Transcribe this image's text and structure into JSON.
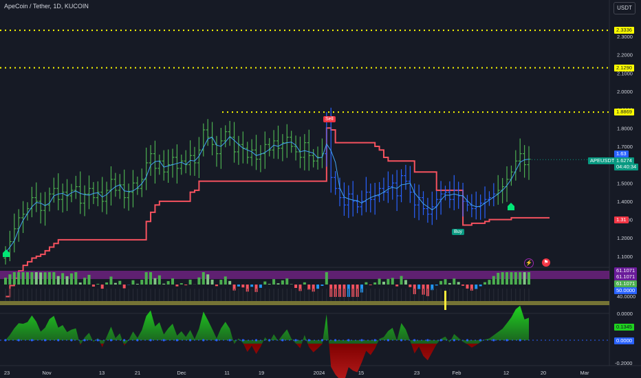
{
  "header": {
    "title": "ApeCoin / Tether, 1D, KUCOIN",
    "currency_button": "USDT"
  },
  "price_axis": {
    "ticks": [
      "2.3000",
      "2.2000",
      "2.1000",
      "2.0000",
      "1.9000",
      "1.8000",
      "1.7000",
      "1.6000",
      "1.5000",
      "1.4000",
      "1.3000",
      "1.2000",
      "1.1000"
    ],
    "level_labels": [
      "2.3336",
      "2.1290",
      "1.8869"
    ],
    "tags": {
      "high": "1.63",
      "symbol": "APEUSDT",
      "price": "1.6274",
      "countdown": "04:40:34",
      "trail": "1.31"
    }
  },
  "signals": {
    "sell": "Sell",
    "buy": "Buy"
  },
  "osc_axis": {
    "ticks": [
      "40.0000",
      "0.0000"
    ],
    "tags": [
      "61.1071",
      "61.1071",
      "61.1071",
      "50.0000"
    ]
  },
  "momentum_axis": {
    "ticks": [
      "-0.2000"
    ],
    "tags": [
      "0.1345",
      "0.0000"
    ]
  },
  "time_axis": [
    "23",
    "Nov",
    "13",
    "21",
    "Dec",
    "11",
    "19",
    "2024",
    "15",
    "23",
    "Feb",
    "12",
    "20",
    "Mar"
  ],
  "colors": {
    "background": "#161a25",
    "up": "#4caf50",
    "down": "#2962ff",
    "trail": "#f7525f",
    "levels": "#ffff00",
    "ma_line": "#42a5f5",
    "osc_band": "#9c27b0",
    "mom_up": "#1fd31f",
    "mom_down": "#b71c1c"
  },
  "chart_data": {
    "type": "candlestick",
    "x": [
      "2023-10-20",
      "2023-10-21",
      "2023-10-22",
      "2023-10-23",
      "2023-10-24",
      "2023-10-25",
      "2023-10-26",
      "2023-10-27",
      "2023-10-28",
      "2023-10-29",
      "2023-10-30",
      "2023-10-31",
      "2023-11-01",
      "2023-11-02",
      "2023-11-03",
      "2023-11-04",
      "2023-11-05",
      "2023-11-06",
      "2023-11-07",
      "2023-11-08",
      "2023-11-09",
      "2023-11-10",
      "2023-11-11",
      "2023-11-12",
      "2023-11-13",
      "2023-11-14",
      "2023-11-15",
      "2023-11-16",
      "2023-11-17",
      "2023-11-18",
      "2023-11-19",
      "2023-11-20",
      "2023-11-21",
      "2023-11-22",
      "2023-11-23",
      "2023-11-24",
      "2023-11-25",
      "2023-11-26",
      "2023-11-27",
      "2023-11-28",
      "2023-11-29",
      "2023-11-30",
      "2023-12-01",
      "2023-12-02",
      "2023-12-03",
      "2023-12-04",
      "2023-12-05",
      "2023-12-06",
      "2023-12-07",
      "2023-12-08",
      "2023-12-09",
      "2023-12-10",
      "2023-12-11",
      "2023-12-12",
      "2023-12-13",
      "2023-12-14",
      "2023-12-15",
      "2023-12-16",
      "2023-12-17",
      "2023-12-18",
      "2023-12-19",
      "2023-12-20",
      "2023-12-21",
      "2023-12-22",
      "2023-12-23",
      "2023-12-24",
      "2023-12-25",
      "2023-12-26",
      "2023-12-27",
      "2023-12-28",
      "2023-12-29",
      "2023-12-30",
      "2023-12-31",
      "2024-01-01",
      "2024-01-02",
      "2024-01-03",
      "2024-01-04",
      "2024-01-05",
      "2024-01-06",
      "2024-01-07",
      "2024-01-08",
      "2024-01-09",
      "2024-01-10",
      "2024-01-11",
      "2024-01-12",
      "2024-01-13",
      "2024-01-14",
      "2024-01-15",
      "2024-01-16",
      "2024-01-17",
      "2024-01-18",
      "2024-01-19",
      "2024-01-20",
      "2024-01-21",
      "2024-01-22",
      "2024-01-23",
      "2024-01-24",
      "2024-01-25",
      "2024-01-26",
      "2024-01-27",
      "2024-01-28",
      "2024-01-29",
      "2024-01-30",
      "2024-01-31",
      "2024-02-01",
      "2024-02-02",
      "2024-02-03",
      "2024-02-04",
      "2024-02-05",
      "2024-02-06",
      "2024-02-07",
      "2024-02-08",
      "2024-02-09",
      "2024-02-10",
      "2024-02-11",
      "2024-02-12",
      "2024-02-13",
      "2024-02-14",
      "2024-02-15",
      "2024-02-16"
    ],
    "close": [
      1.12,
      1.18,
      1.25,
      1.31,
      1.33,
      1.36,
      1.42,
      1.4,
      1.35,
      1.38,
      1.44,
      1.47,
      1.41,
      1.45,
      1.43,
      1.46,
      1.48,
      1.39,
      1.44,
      1.47,
      1.42,
      1.45,
      1.4,
      1.46,
      1.52,
      1.46,
      1.49,
      1.42,
      1.45,
      1.5,
      1.47,
      1.52,
      1.61,
      1.66,
      1.58,
      1.62,
      1.56,
      1.6,
      1.64,
      1.58,
      1.62,
      1.6,
      1.65,
      1.61,
      1.68,
      1.79,
      1.75,
      1.71,
      1.66,
      1.73,
      1.78,
      1.75,
      1.67,
      1.71,
      1.69,
      1.64,
      1.68,
      1.63,
      1.66,
      1.71,
      1.68,
      1.73,
      1.69,
      1.72,
      1.75,
      1.7,
      1.67,
      1.64,
      1.72,
      1.65,
      1.62,
      1.64,
      1.66,
      1.84,
      1.53,
      1.47,
      1.42,
      1.38,
      1.44,
      1.4,
      1.37,
      1.4,
      1.45,
      1.41,
      1.43,
      1.47,
      1.45,
      1.48,
      1.5,
      1.43,
      1.54,
      1.51,
      1.45,
      1.38,
      1.42,
      1.36,
      1.33,
      1.37,
      1.41,
      1.44,
      1.45,
      1.41,
      1.46,
      1.43,
      1.4,
      1.38,
      1.36,
      1.37,
      1.39,
      1.41,
      1.42,
      1.44,
      1.46,
      1.48,
      1.52,
      1.56,
      1.62,
      1.66,
      1.6,
      1.63
    ],
    "trailing_stop": [
      0.88,
      0.94,
      0.98,
      1.02,
      1.05,
      1.07,
      1.09,
      1.1,
      1.11,
      1.13,
      1.15,
      1.17,
      1.19,
      1.19,
      1.19,
      1.19,
      1.19,
      1.19,
      1.19,
      1.19,
      1.19,
      1.19,
      1.19,
      1.19,
      1.19,
      1.19,
      1.19,
      1.19,
      1.19,
      1.19,
      1.19,
      1.19,
      1.29,
      1.34,
      1.38,
      1.4,
      1.4,
      1.4,
      1.4,
      1.4,
      1.4,
      1.4,
      1.45,
      1.46,
      1.51,
      1.51,
      1.51,
      1.51,
      1.51,
      1.51,
      1.51,
      1.51,
      1.51,
      1.51,
      1.51,
      1.51,
      1.51,
      1.51,
      1.51,
      1.51,
      1.51,
      1.51,
      1.51,
      1.51,
      1.51,
      1.51,
      1.51,
      1.51,
      1.51,
      1.51,
      1.51,
      1.51,
      1.51,
      1.8,
      1.79,
      1.72,
      1.72,
      1.72,
      1.72,
      1.72,
      1.72,
      1.72,
      1.72,
      1.72,
      1.7,
      1.68,
      1.64,
      1.62,
      1.62,
      1.62,
      1.62,
      1.62,
      1.62,
      1.56,
      1.56,
      1.56,
      1.56,
      1.56,
      1.46,
      1.46,
      1.46,
      1.46,
      1.46,
      1.46,
      1.27,
      1.27,
      1.28,
      1.28,
      1.28,
      1.29,
      1.3,
      1.3,
      1.3,
      1.3,
      1.3,
      1.31,
      1.31,
      1.31,
      1.31,
      1.31
    ],
    "ylim": [
      1.05,
      2.45
    ],
    "levels": [
      2.3336,
      2.129,
      1.8869
    ],
    "last_price": 1.6274,
    "trailing_stop_last": 1.31,
    "oscillator_last": 61.1071,
    "oscillator_mid": 50.0,
    "momentum_last": 0.1345,
    "momentum_zero": 0.0
  }
}
